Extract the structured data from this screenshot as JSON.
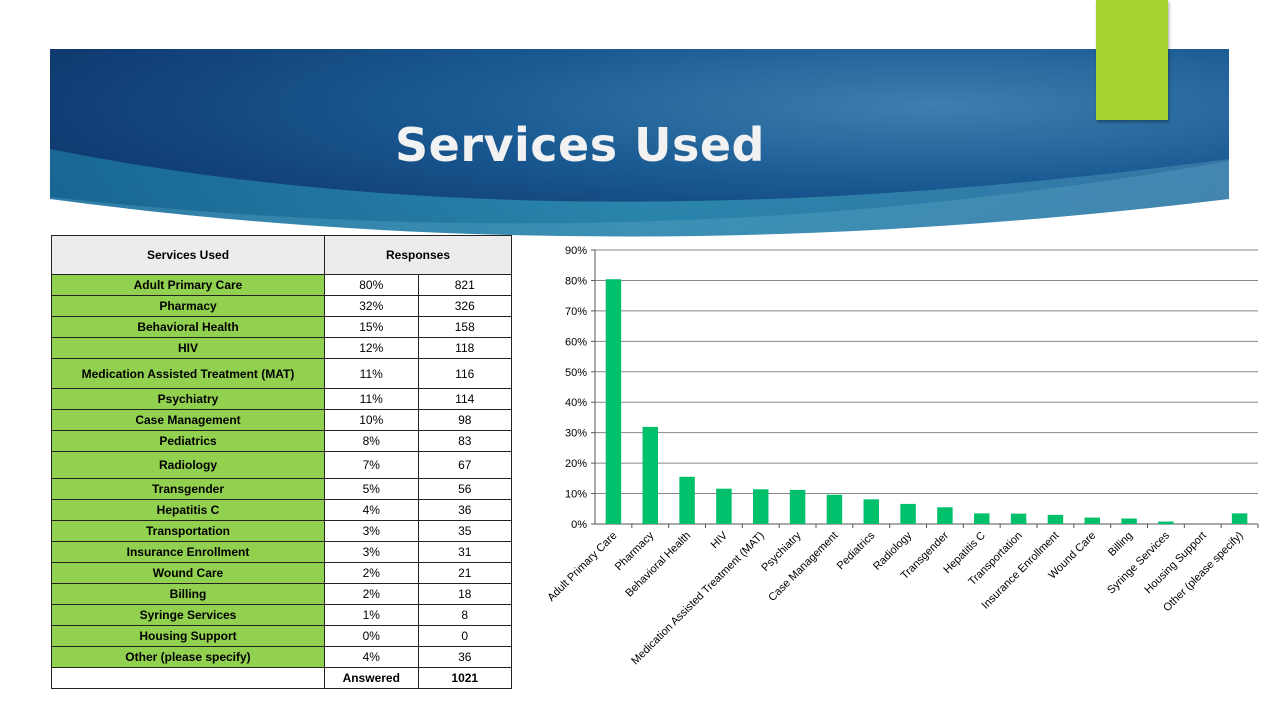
{
  "slide": {
    "title": "Services Used",
    "colors": {
      "banner_dark": "#0e3a6e",
      "banner_light": "#2a7fa8",
      "accent": "#a6d22f",
      "row_green": "#92d050",
      "bar": "#00c06b"
    }
  },
  "table": {
    "header_service": "Services Used",
    "header_responses": "Responses",
    "rows": [
      {
        "service": "Adult Primary Care",
        "percent": "80%",
        "count": "821"
      },
      {
        "service": "Pharmacy",
        "percent": "32%",
        "count": "326"
      },
      {
        "service": "Behavioral Health",
        "percent": "15%",
        "count": "158"
      },
      {
        "service": "HIV",
        "percent": "12%",
        "count": "118"
      },
      {
        "service": "Medication Assisted Treatment (MAT)",
        "percent": "11%",
        "count": "116"
      },
      {
        "service": "Psychiatry",
        "percent": "11%",
        "count": "114"
      },
      {
        "service": "Case Management",
        "percent": "10%",
        "count": "98"
      },
      {
        "service": "Pediatrics",
        "percent": "8%",
        "count": "83"
      },
      {
        "service": "Radiology",
        "percent": "7%",
        "count": "67"
      },
      {
        "service": "Transgender",
        "percent": "5%",
        "count": "56"
      },
      {
        "service": "Hepatitis C",
        "percent": "4%",
        "count": "36"
      },
      {
        "service": "Transportation",
        "percent": "3%",
        "count": "35"
      },
      {
        "service": "Insurance Enrollment",
        "percent": "3%",
        "count": "31"
      },
      {
        "service": "Wound Care",
        "percent": "2%",
        "count": "21"
      },
      {
        "service": "Billing",
        "percent": "2%",
        "count": "18"
      },
      {
        "service": "Syringe Services",
        "percent": "1%",
        "count": "8"
      },
      {
        "service": "Housing Support",
        "percent": "0%",
        "count": "0"
      },
      {
        "service": "Other (please specify)",
        "percent": "4%",
        "count": "36"
      }
    ],
    "answered_label": "Answered",
    "answered_value": "1021"
  },
  "chart_data": {
    "type": "bar",
    "categories": [
      "Adult Primary Care",
      "Pharmacy",
      "Behavioral Health",
      "HIV",
      "Medication Assisted Treatment (MAT)",
      "Psychiatry",
      "Case Management",
      "Pediatrics",
      "Radiology",
      "Transgender",
      "Hepatitis C",
      "Transportation",
      "Insurance Enrollment",
      "Wound Care",
      "Billing",
      "Syringe Services",
      "Housing Support",
      "Other (please specify)"
    ],
    "values": [
      80.4,
      31.9,
      15.5,
      11.6,
      11.4,
      11.2,
      9.6,
      8.1,
      6.6,
      5.5,
      3.5,
      3.4,
      3.0,
      2.1,
      1.8,
      0.8,
      0,
      3.5
    ],
    "yticks": [
      "0%",
      "10%",
      "20%",
      "30%",
      "40%",
      "50%",
      "60%",
      "70%",
      "80%",
      "90%"
    ],
    "ylim": [
      0,
      90
    ],
    "grid": true,
    "legend": "none"
  }
}
